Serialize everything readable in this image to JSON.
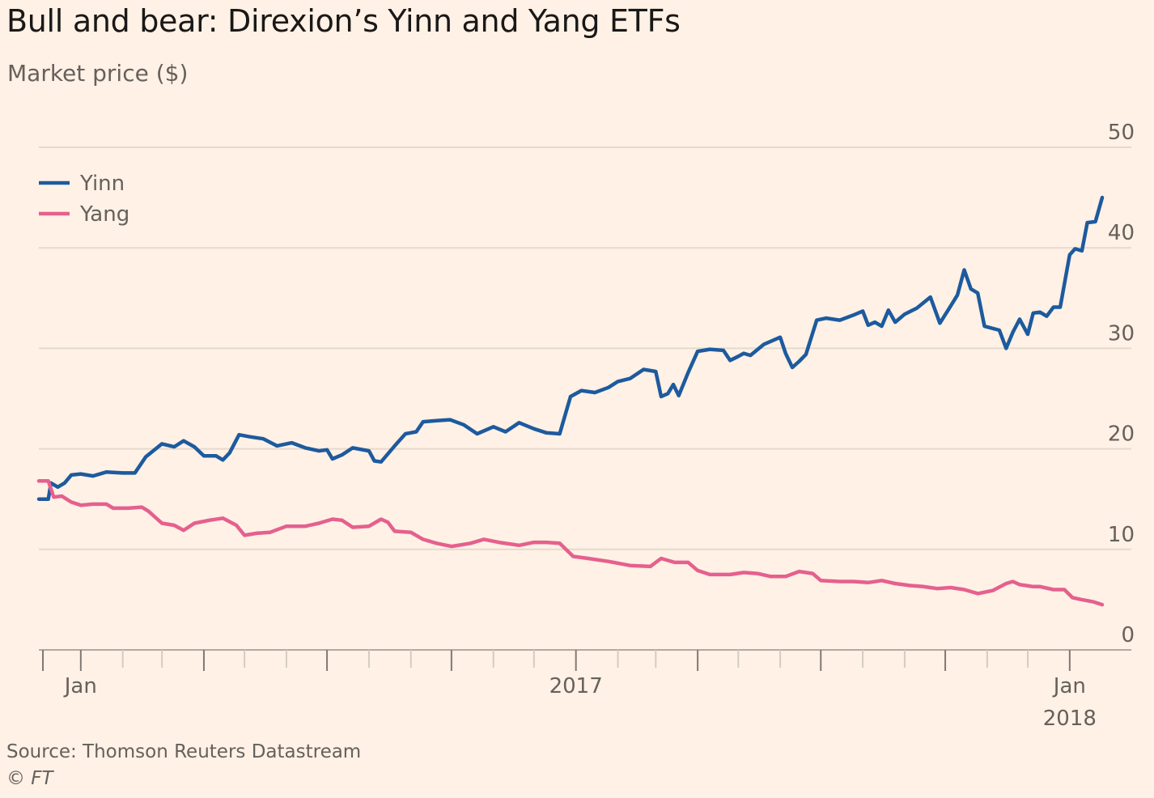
{
  "chart_data": {
    "type": "line",
    "title": "Bull and bear: Direxion’s Yinn and Yang ETFs",
    "subtitle": "Market price ($)",
    "ylabel": "Market price ($)",
    "ylim": [
      0,
      50
    ],
    "yticks": [
      0,
      10,
      20,
      30,
      40,
      50
    ],
    "grid": true,
    "legend_position": "top-left",
    "xlim": [
      "2015-12-01",
      "2018-01-31"
    ],
    "x_month_ticks": [
      "2016-01",
      "2016-02",
      "2016-03",
      "2016-04",
      "2016-05",
      "2016-06",
      "2016-07",
      "2016-08",
      "2016-09",
      "2016-10",
      "2016-11",
      "2016-12",
      "2017-01",
      "2017-02",
      "2017-03",
      "2017-04",
      "2017-05",
      "2017-06",
      "2017-07",
      "2017-08",
      "2017-09",
      "2017-10",
      "2017-11",
      "2017-12",
      "2018-01"
    ],
    "x_major_ticks": [
      "2015-12",
      "2016-01",
      "2016-04",
      "2016-07",
      "2016-10",
      "2017-01",
      "2017-04",
      "2017-07",
      "2017-10",
      "2018-01"
    ],
    "x_tick_labels": [
      {
        "date": "2016-01",
        "label": "Jan",
        "sublabel": ""
      },
      {
        "date": "2017-01",
        "label": "2017",
        "sublabel": ""
      },
      {
        "date": "2018-01",
        "label": "Jan",
        "sublabel": "2018"
      }
    ],
    "series": [
      {
        "name": "Yinn",
        "color": "#1d5a9e",
        "points": [
          [
            "2015-12-01",
            15.0
          ],
          [
            "2015-12-08",
            15.0
          ],
          [
            "2015-12-10",
            16.6
          ],
          [
            "2015-12-15",
            16.2
          ],
          [
            "2015-12-20",
            16.6
          ],
          [
            "2015-12-25",
            17.4
          ],
          [
            "2016-01-01",
            17.5
          ],
          [
            "2016-01-10",
            17.3
          ],
          [
            "2016-01-20",
            17.7
          ],
          [
            "2016-02-01",
            17.6
          ],
          [
            "2016-02-10",
            17.6
          ],
          [
            "2016-02-18",
            19.2
          ],
          [
            "2016-03-01",
            20.5
          ],
          [
            "2016-03-10",
            20.2
          ],
          [
            "2016-03-17",
            20.8
          ],
          [
            "2016-03-25",
            20.2
          ],
          [
            "2016-04-01",
            19.3
          ],
          [
            "2016-04-10",
            19.3
          ],
          [
            "2016-04-15",
            18.9
          ],
          [
            "2016-04-20",
            19.6
          ],
          [
            "2016-04-27",
            21.4
          ],
          [
            "2016-05-05",
            21.2
          ],
          [
            "2016-05-15",
            21.0
          ],
          [
            "2016-05-25",
            20.3
          ],
          [
            "2016-06-05",
            20.6
          ],
          [
            "2016-06-15",
            20.1
          ],
          [
            "2016-06-25",
            19.8
          ],
          [
            "2016-07-01",
            19.9
          ],
          [
            "2016-07-05",
            19.0
          ],
          [
            "2016-07-12",
            19.4
          ],
          [
            "2016-07-20",
            20.1
          ],
          [
            "2016-08-01",
            19.8
          ],
          [
            "2016-08-05",
            18.8
          ],
          [
            "2016-08-10",
            18.7
          ],
          [
            "2016-08-20",
            20.3
          ],
          [
            "2016-08-28",
            21.5
          ],
          [
            "2016-09-05",
            21.7
          ],
          [
            "2016-09-10",
            22.7
          ],
          [
            "2016-09-20",
            22.8
          ],
          [
            "2016-09-30",
            22.9
          ],
          [
            "2016-10-10",
            22.4
          ],
          [
            "2016-10-20",
            21.5
          ],
          [
            "2016-11-01",
            22.2
          ],
          [
            "2016-11-10",
            21.7
          ],
          [
            "2016-11-20",
            22.6
          ],
          [
            "2016-12-01",
            22.0
          ],
          [
            "2016-12-10",
            21.6
          ],
          [
            "2016-12-20",
            21.5
          ],
          [
            "2016-12-28",
            25.2
          ],
          [
            "2017-01-05",
            25.8
          ],
          [
            "2017-01-15",
            25.6
          ],
          [
            "2017-01-25",
            26.1
          ],
          [
            "2017-02-01",
            26.7
          ],
          [
            "2017-02-10",
            27.0
          ],
          [
            "2017-02-20",
            27.9
          ],
          [
            "2017-03-01",
            27.7
          ],
          [
            "2017-03-05",
            25.2
          ],
          [
            "2017-03-10",
            25.5
          ],
          [
            "2017-03-14",
            26.4
          ],
          [
            "2017-03-18",
            25.3
          ],
          [
            "2017-03-25",
            27.6
          ],
          [
            "2017-04-01",
            29.7
          ],
          [
            "2017-04-10",
            29.9
          ],
          [
            "2017-04-20",
            29.8
          ],
          [
            "2017-04-25",
            28.8
          ],
          [
            "2017-05-01",
            29.2
          ],
          [
            "2017-05-05",
            29.5
          ],
          [
            "2017-05-10",
            29.3
          ],
          [
            "2017-05-20",
            30.4
          ],
          [
            "2017-06-01",
            31.1
          ],
          [
            "2017-06-05",
            29.5
          ],
          [
            "2017-06-10",
            28.1
          ],
          [
            "2017-06-15",
            28.7
          ],
          [
            "2017-06-20",
            29.4
          ],
          [
            "2017-06-28",
            32.8
          ],
          [
            "2017-07-05",
            33.0
          ],
          [
            "2017-07-15",
            32.8
          ],
          [
            "2017-07-25",
            33.3
          ],
          [
            "2017-08-01",
            33.7
          ],
          [
            "2017-08-05",
            32.3
          ],
          [
            "2017-08-10",
            32.6
          ],
          [
            "2017-08-15",
            32.2
          ],
          [
            "2017-08-20",
            33.8
          ],
          [
            "2017-08-25",
            32.6
          ],
          [
            "2017-09-01",
            33.4
          ],
          [
            "2017-09-10",
            34.0
          ],
          [
            "2017-09-20",
            35.1
          ],
          [
            "2017-09-27",
            32.5
          ],
          [
            "2017-10-05",
            34.2
          ],
          [
            "2017-10-10",
            35.3
          ],
          [
            "2017-10-15",
            37.8
          ],
          [
            "2017-10-20",
            35.9
          ],
          [
            "2017-10-25",
            35.5
          ],
          [
            "2017-10-30",
            32.2
          ],
          [
            "2017-11-10",
            31.8
          ],
          [
            "2017-11-15",
            30.0
          ],
          [
            "2017-11-20",
            31.6
          ],
          [
            "2017-11-25",
            32.9
          ],
          [
            "2017-12-01",
            31.4
          ],
          [
            "2017-12-05",
            33.5
          ],
          [
            "2017-12-10",
            33.6
          ],
          [
            "2017-12-15",
            33.2
          ],
          [
            "2017-12-20",
            34.1
          ],
          [
            "2017-12-25",
            34.1
          ],
          [
            "2018-01-01",
            39.3
          ],
          [
            "2018-01-05",
            39.9
          ],
          [
            "2018-01-10",
            39.7
          ],
          [
            "2018-01-14",
            42.5
          ],
          [
            "2018-01-20",
            42.6
          ],
          [
            "2018-01-25",
            45.0
          ]
        ]
      },
      {
        "name": "Yang",
        "color": "#e5608e",
        "points": [
          [
            "2015-12-01",
            16.8
          ],
          [
            "2015-12-08",
            16.8
          ],
          [
            "2015-12-12",
            15.2
          ],
          [
            "2015-12-18",
            15.3
          ],
          [
            "2015-12-25",
            14.7
          ],
          [
            "2016-01-01",
            14.4
          ],
          [
            "2016-01-10",
            14.5
          ],
          [
            "2016-01-20",
            14.5
          ],
          [
            "2016-01-25",
            14.1
          ],
          [
            "2016-02-05",
            14.1
          ],
          [
            "2016-02-15",
            14.2
          ],
          [
            "2016-02-20",
            13.8
          ],
          [
            "2016-03-01",
            12.6
          ],
          [
            "2016-03-10",
            12.4
          ],
          [
            "2016-03-17",
            11.9
          ],
          [
            "2016-03-25",
            12.6
          ],
          [
            "2016-04-05",
            12.9
          ],
          [
            "2016-04-15",
            13.1
          ],
          [
            "2016-04-25",
            12.4
          ],
          [
            "2016-05-01",
            11.4
          ],
          [
            "2016-05-10",
            11.6
          ],
          [
            "2016-05-20",
            11.7
          ],
          [
            "2016-06-01",
            12.3
          ],
          [
            "2016-06-15",
            12.3
          ],
          [
            "2016-06-25",
            12.6
          ],
          [
            "2016-07-05",
            13.0
          ],
          [
            "2016-07-12",
            12.9
          ],
          [
            "2016-07-20",
            12.2
          ],
          [
            "2016-08-01",
            12.3
          ],
          [
            "2016-08-10",
            13.0
          ],
          [
            "2016-08-15",
            12.7
          ],
          [
            "2016-08-20",
            11.8
          ],
          [
            "2016-09-01",
            11.7
          ],
          [
            "2016-09-10",
            11.0
          ],
          [
            "2016-09-20",
            10.6
          ],
          [
            "2016-10-01",
            10.3
          ],
          [
            "2016-10-15",
            10.6
          ],
          [
            "2016-10-25",
            11.0
          ],
          [
            "2016-11-05",
            10.7
          ],
          [
            "2016-11-20",
            10.4
          ],
          [
            "2016-12-01",
            10.7
          ],
          [
            "2016-12-10",
            10.7
          ],
          [
            "2016-12-20",
            10.6
          ],
          [
            "2016-12-30",
            9.3
          ],
          [
            "2017-01-10",
            9.1
          ],
          [
            "2017-01-25",
            8.8
          ],
          [
            "2017-02-10",
            8.4
          ],
          [
            "2017-02-25",
            8.3
          ],
          [
            "2017-03-05",
            9.1
          ],
          [
            "2017-03-15",
            8.7
          ],
          [
            "2017-03-25",
            8.7
          ],
          [
            "2017-04-01",
            7.9
          ],
          [
            "2017-04-10",
            7.5
          ],
          [
            "2017-04-25",
            7.5
          ],
          [
            "2017-05-05",
            7.7
          ],
          [
            "2017-05-15",
            7.6
          ],
          [
            "2017-05-25",
            7.3
          ],
          [
            "2017-06-05",
            7.3
          ],
          [
            "2017-06-15",
            7.8
          ],
          [
            "2017-06-25",
            7.6
          ],
          [
            "2017-07-01",
            6.9
          ],
          [
            "2017-07-15",
            6.8
          ],
          [
            "2017-07-25",
            6.8
          ],
          [
            "2017-08-05",
            6.7
          ],
          [
            "2017-08-15",
            6.9
          ],
          [
            "2017-08-25",
            6.6
          ],
          [
            "2017-09-05",
            6.4
          ],
          [
            "2017-09-15",
            6.3
          ],
          [
            "2017-09-25",
            6.1
          ],
          [
            "2017-10-05",
            6.2
          ],
          [
            "2017-10-15",
            6.0
          ],
          [
            "2017-10-25",
            5.6
          ],
          [
            "2017-11-05",
            5.9
          ],
          [
            "2017-11-15",
            6.6
          ],
          [
            "2017-11-20",
            6.8
          ],
          [
            "2017-11-25",
            6.5
          ],
          [
            "2017-12-05",
            6.3
          ],
          [
            "2017-12-10",
            6.3
          ],
          [
            "2017-12-20",
            6.0
          ],
          [
            "2017-12-28",
            6.0
          ],
          [
            "2018-01-03",
            5.2
          ],
          [
            "2018-01-10",
            5.0
          ],
          [
            "2018-01-18",
            4.8
          ],
          [
            "2018-01-25",
            4.5
          ]
        ]
      }
    ],
    "source": "Source: Thomson Reuters Datastream",
    "credit": "© FT"
  }
}
